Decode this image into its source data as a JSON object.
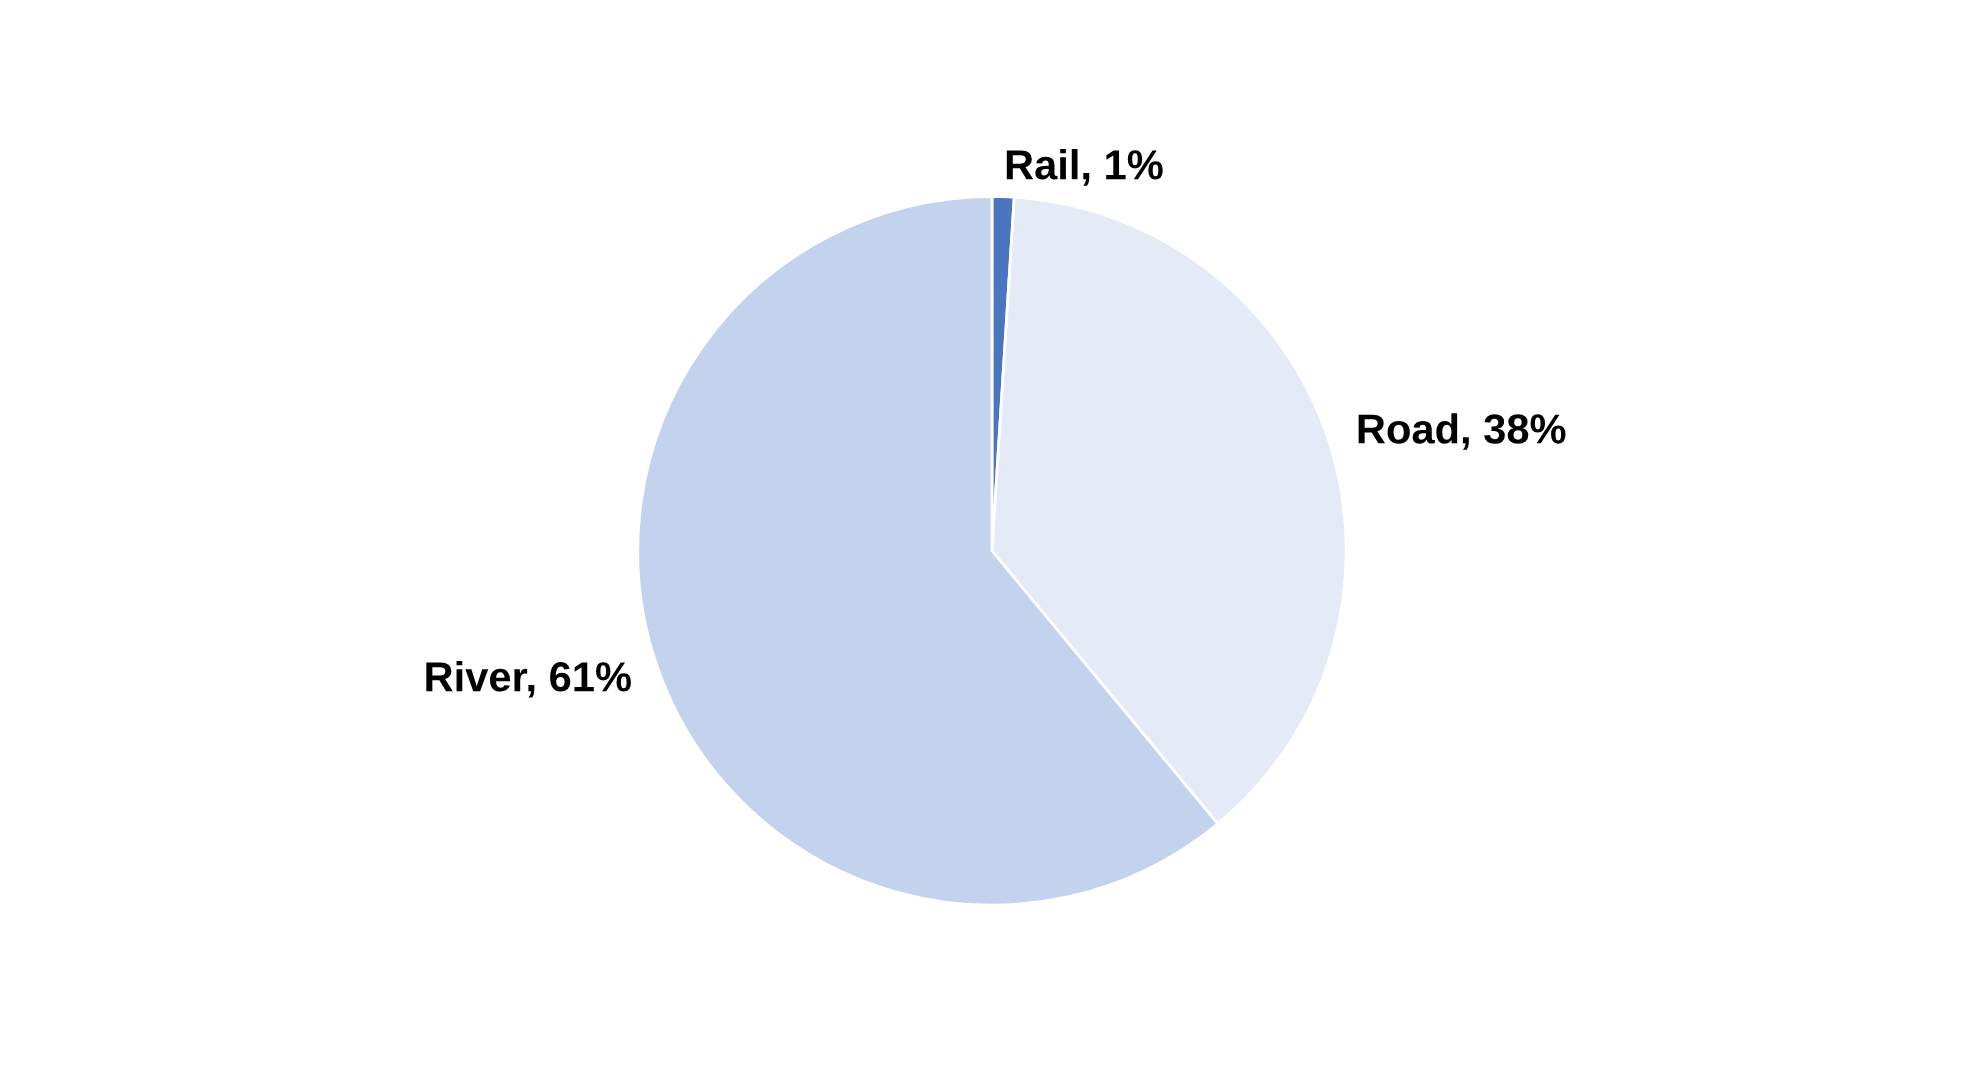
{
  "chart_data": {
    "type": "pie",
    "categories": [
      "Rail",
      "Road",
      "River"
    ],
    "values": [
      1,
      38,
      61
    ],
    "value_labels": [
      "1%",
      "38%",
      "61%"
    ],
    "colors": [
      "#4a76c0",
      "#e4ebf6",
      "#c3d3ee"
    ],
    "legend": false
  }
}
